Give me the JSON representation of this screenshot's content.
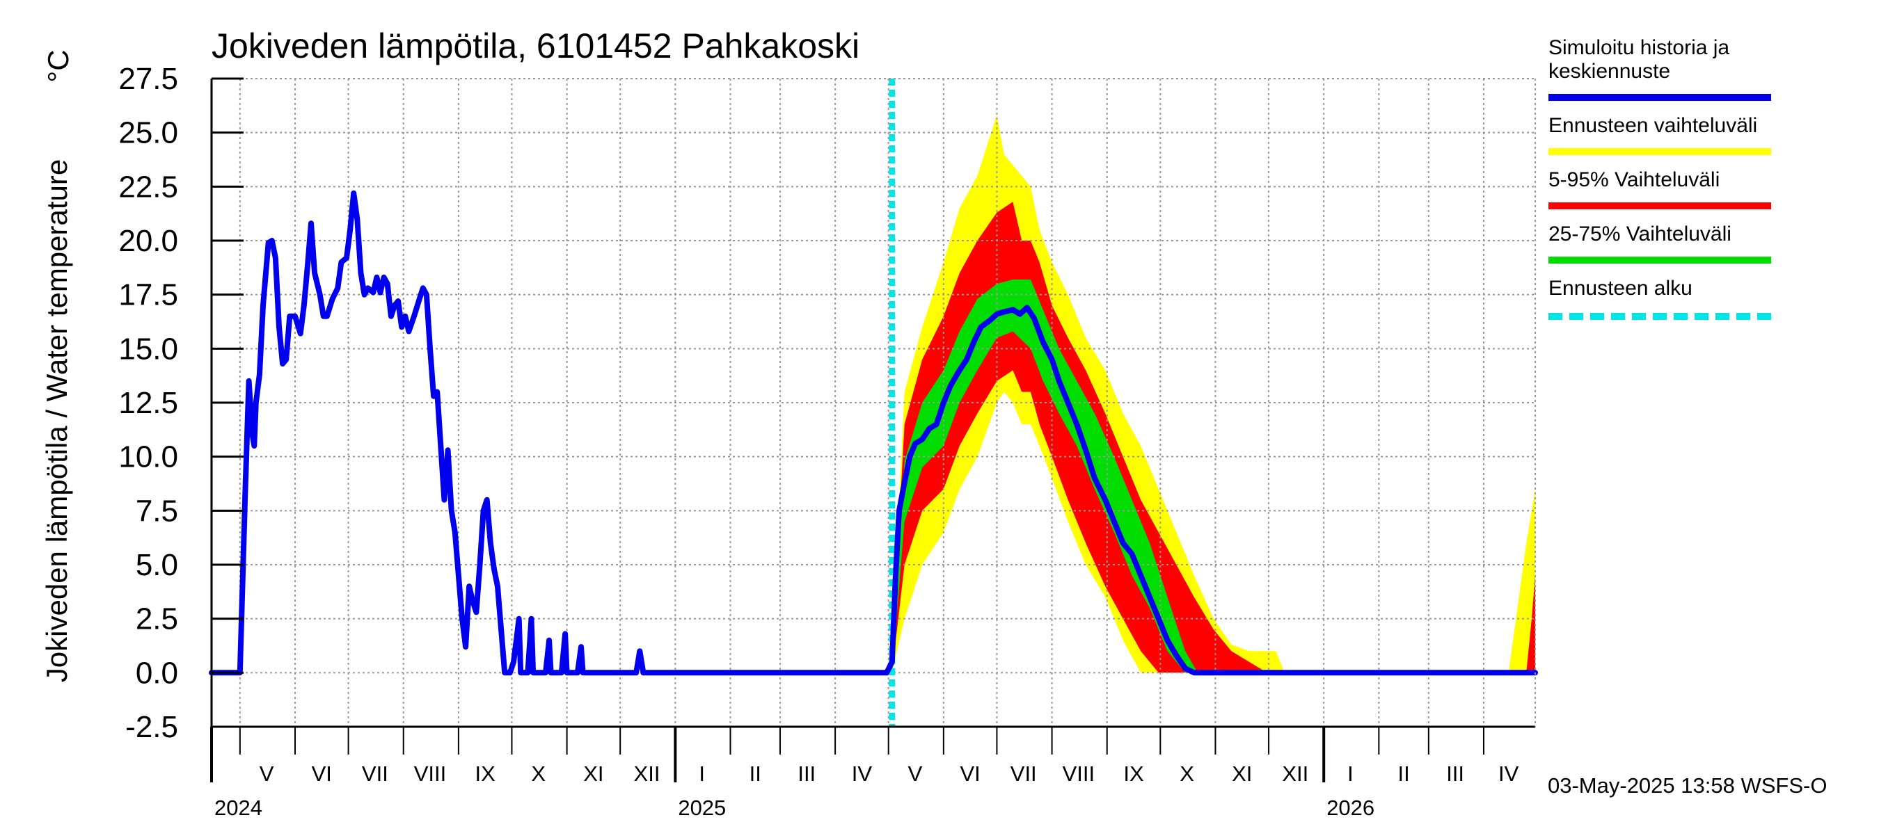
{
  "chart_data": {
    "type": "area",
    "title": "Jokiveden lämpötila, 6101452 Pahkakoski",
    "ylabel": "Jokiveden lämpötila / Water temperature",
    "yunit": "°C",
    "ylim": [
      -2.5,
      27.5
    ],
    "yticks": [
      "27.5",
      "25.0",
      "22.5",
      "20.0",
      "17.5",
      "15.0",
      "12.5",
      "10.0",
      "7.5",
      "5.0",
      "2.5",
      "0.0",
      "-2.5"
    ],
    "xlim": [
      "2024-04-15",
      "2026-04-30"
    ],
    "grid": true,
    "months": [
      {
        "label": "V",
        "start": "2024-05-01"
      },
      {
        "label": "VI",
        "start": "2024-06-01"
      },
      {
        "label": "VII",
        "start": "2024-07-01"
      },
      {
        "label": "VIII",
        "start": "2024-08-01"
      },
      {
        "label": "IX",
        "start": "2024-09-01"
      },
      {
        "label": "X",
        "start": "2024-10-01"
      },
      {
        "label": "XI",
        "start": "2024-11-01"
      },
      {
        "label": "XII",
        "start": "2024-12-01"
      },
      {
        "label": "I",
        "start": "2025-01-01"
      },
      {
        "label": "II",
        "start": "2025-02-01"
      },
      {
        "label": "III",
        "start": "2025-03-01"
      },
      {
        "label": "IV",
        "start": "2025-04-01"
      },
      {
        "label": "V",
        "start": "2025-05-01"
      },
      {
        "label": "VI",
        "start": "2025-06-01"
      },
      {
        "label": "VII",
        "start": "2025-07-01"
      },
      {
        "label": "VIII",
        "start": "2025-08-01"
      },
      {
        "label": "IX",
        "start": "2025-09-01"
      },
      {
        "label": "X",
        "start": "2025-10-01"
      },
      {
        "label": "XI",
        "start": "2025-11-01"
      },
      {
        "label": "XII",
        "start": "2025-12-01"
      },
      {
        "label": "I",
        "start": "2026-01-01"
      },
      {
        "label": "II",
        "start": "2026-02-01"
      },
      {
        "label": "III",
        "start": "2026-03-01"
      },
      {
        "label": "IV",
        "start": "2026-04-01"
      }
    ],
    "years": [
      {
        "label": "2024",
        "start": "2024-04-15"
      },
      {
        "label": "2025",
        "start": "2025-01-01"
      },
      {
        "label": "2026",
        "start": "2026-01-01"
      }
    ],
    "forecast_start": "2025-05-03",
    "history": {
      "name": "Simuloitu historia ja keskiennuste",
      "color": "#0000ee",
      "points": [
        [
          "2024-04-15",
          0
        ],
        [
          "2024-05-01",
          0
        ],
        [
          "2024-05-04",
          8.5
        ],
        [
          "2024-05-06",
          13.5
        ],
        [
          "2024-05-08",
          11.0
        ],
        [
          "2024-05-09",
          10.5
        ],
        [
          "2024-05-10",
          12.5
        ],
        [
          "2024-05-12",
          13.8
        ],
        [
          "2024-05-14",
          17.0
        ],
        [
          "2024-05-17",
          19.9
        ],
        [
          "2024-05-19",
          20.0
        ],
        [
          "2024-05-21",
          19.2
        ],
        [
          "2024-05-23",
          16.0
        ],
        [
          "2024-05-25",
          14.3
        ],
        [
          "2024-05-27",
          14.5
        ],
        [
          "2024-05-29",
          16.5
        ],
        [
          "2024-06-01",
          16.5
        ],
        [
          "2024-06-04",
          15.7
        ],
        [
          "2024-06-06",
          17.0
        ],
        [
          "2024-06-08",
          18.8
        ],
        [
          "2024-06-10",
          20.8
        ],
        [
          "2024-06-12",
          18.5
        ],
        [
          "2024-06-15",
          17.5
        ],
        [
          "2024-06-17",
          16.5
        ],
        [
          "2024-06-19",
          16.5
        ],
        [
          "2024-06-22",
          17.3
        ],
        [
          "2024-06-25",
          17.8
        ],
        [
          "2024-06-27",
          19.0
        ],
        [
          "2024-06-30",
          19.2
        ],
        [
          "2024-07-02",
          20.5
        ],
        [
          "2024-07-04",
          22.2
        ],
        [
          "2024-07-06",
          21.0
        ],
        [
          "2024-07-08",
          18.5
        ],
        [
          "2024-07-10",
          17.5
        ],
        [
          "2024-07-12",
          17.8
        ],
        [
          "2024-07-15",
          17.6
        ],
        [
          "2024-07-17",
          18.3
        ],
        [
          "2024-07-19",
          17.6
        ],
        [
          "2024-07-21",
          18.3
        ],
        [
          "2024-07-23",
          18.0
        ],
        [
          "2024-07-25",
          16.5
        ],
        [
          "2024-07-27",
          17.0
        ],
        [
          "2024-07-29",
          17.2
        ],
        [
          "2024-07-31",
          16.0
        ],
        [
          "2024-08-02",
          16.5
        ],
        [
          "2024-08-04",
          15.8
        ],
        [
          "2024-08-07",
          16.5
        ],
        [
          "2024-08-10",
          17.3
        ],
        [
          "2024-08-12",
          17.8
        ],
        [
          "2024-08-14",
          17.5
        ],
        [
          "2024-08-16",
          15.0
        ],
        [
          "2024-08-18",
          12.8
        ],
        [
          "2024-08-20",
          13.0
        ],
        [
          "2024-08-22",
          10.5
        ],
        [
          "2024-08-24",
          8.0
        ],
        [
          "2024-08-26",
          10.3
        ],
        [
          "2024-08-28",
          7.5
        ],
        [
          "2024-08-30",
          6.5
        ],
        [
          "2024-09-01",
          4.5
        ],
        [
          "2024-09-03",
          2.5
        ],
        [
          "2024-09-05",
          1.2
        ],
        [
          "2024-09-07",
          4.0
        ],
        [
          "2024-09-09",
          3.3
        ],
        [
          "2024-09-11",
          2.8
        ],
        [
          "2024-09-13",
          5.0
        ],
        [
          "2024-09-15",
          7.5
        ],
        [
          "2024-09-17",
          8.0
        ],
        [
          "2024-09-19",
          6.0
        ],
        [
          "2024-09-21",
          4.8
        ],
        [
          "2024-09-23",
          4.0
        ],
        [
          "2024-09-25",
          2.0
        ],
        [
          "2024-09-27",
          0
        ],
        [
          "2024-09-30",
          0
        ],
        [
          "2024-10-02",
          0.5
        ],
        [
          "2024-10-04",
          1.8
        ],
        [
          "2024-10-05",
          2.5
        ],
        [
          "2024-10-06",
          0
        ],
        [
          "2024-10-10",
          0
        ],
        [
          "2024-10-12",
          2.5
        ],
        [
          "2024-10-13",
          0
        ],
        [
          "2024-10-20",
          0
        ],
        [
          "2024-10-22",
          1.5
        ],
        [
          "2024-10-23",
          0
        ],
        [
          "2024-10-29",
          0
        ],
        [
          "2024-10-31",
          1.8
        ],
        [
          "2024-11-01",
          0
        ],
        [
          "2024-11-07",
          0
        ],
        [
          "2024-11-09",
          1.2
        ],
        [
          "2024-11-10",
          0
        ],
        [
          "2024-12-10",
          0
        ],
        [
          "2024-12-12",
          1.0
        ],
        [
          "2024-12-14",
          0
        ],
        [
          "2025-04-30",
          0
        ],
        [
          "2025-05-03",
          0.5
        ],
        [
          "2025-05-05",
          4.5
        ],
        [
          "2025-05-07",
          7.5
        ],
        [
          "2025-05-10",
          8.8
        ],
        [
          "2025-05-13",
          10.0
        ],
        [
          "2025-05-16",
          10.6
        ],
        [
          "2025-05-20",
          10.8
        ],
        [
          "2025-05-24",
          11.3
        ],
        [
          "2025-05-28",
          11.5
        ],
        [
          "2025-06-01",
          12.5
        ],
        [
          "2025-06-05",
          13.3
        ],
        [
          "2025-06-10",
          14.0
        ],
        [
          "2025-06-14",
          14.5
        ],
        [
          "2025-06-18",
          15.3
        ],
        [
          "2025-06-22",
          16.0
        ],
        [
          "2025-06-27",
          16.3
        ],
        [
          "2025-07-01",
          16.6
        ],
        [
          "2025-07-05",
          16.7
        ],
        [
          "2025-07-10",
          16.8
        ],
        [
          "2025-07-14",
          16.6
        ],
        [
          "2025-07-18",
          16.9
        ],
        [
          "2025-07-22",
          16.4
        ],
        [
          "2025-07-27",
          15.3
        ],
        [
          "2025-08-01",
          14.5
        ],
        [
          "2025-08-05",
          13.5
        ],
        [
          "2025-08-10",
          12.5
        ],
        [
          "2025-08-15",
          11.5
        ],
        [
          "2025-08-20",
          10.3
        ],
        [
          "2025-08-25",
          9.0
        ],
        [
          "2025-08-31",
          8.0
        ],
        [
          "2025-09-05",
          7.0
        ],
        [
          "2025-09-10",
          6.0
        ],
        [
          "2025-09-15",
          5.5
        ],
        [
          "2025-09-20",
          4.5
        ],
        [
          "2025-09-25",
          3.5
        ],
        [
          "2025-09-30",
          2.5
        ],
        [
          "2025-10-05",
          1.5
        ],
        [
          "2025-10-10",
          0.8
        ],
        [
          "2025-10-15",
          0.2
        ],
        [
          "2025-10-20",
          0
        ],
        [
          "2026-04-30",
          0
        ]
      ]
    },
    "bands": [
      {
        "name": "Ennusteen vaihteluväli",
        "color": "#ffff00",
        "x": [
          "2025-05-03",
          "2025-05-10",
          "2025-05-20",
          "2025-06-01",
          "2025-06-10",
          "2025-06-20",
          "2025-07-01",
          "2025-07-05",
          "2025-07-10",
          "2025-07-15",
          "2025-07-20",
          "2025-07-25",
          "2025-08-01",
          "2025-08-10",
          "2025-08-20",
          "2025-08-31",
          "2025-09-10",
          "2025-09-20",
          "2025-09-30",
          "2025-10-10",
          "2025-10-20",
          "2025-10-31",
          "2025-11-10",
          "2025-11-20",
          "2025-11-30",
          "2025-12-05",
          "2025-12-10"
        ],
        "lower": [
          0,
          2.5,
          5.0,
          6.5,
          8.5,
          10.0,
          12.5,
          13.0,
          12.5,
          11.5,
          11.5,
          10.5,
          9.0,
          7.0,
          5.0,
          3.5,
          1.5,
          0,
          0,
          0,
          0,
          0,
          0,
          0,
          0,
          0,
          0
        ],
        "upper": [
          1.5,
          13.0,
          16.0,
          19.0,
          21.5,
          23.0,
          25.8,
          24.0,
          23.5,
          23.0,
          22.5,
          20.5,
          19.0,
          17.5,
          15.5,
          14.0,
          12.0,
          10.5,
          8.5,
          6.5,
          4.5,
          2.5,
          1.3,
          1.0,
          1.0,
          1.0,
          0
        ]
      },
      {
        "name": "5-95% Vaihteluväli",
        "color": "#ff0000",
        "x": [
          "2025-05-03",
          "2025-05-10",
          "2025-05-20",
          "2025-06-01",
          "2025-06-10",
          "2025-06-20",
          "2025-07-01",
          "2025-07-10",
          "2025-07-15",
          "2025-07-20",
          "2025-07-25",
          "2025-08-01",
          "2025-08-10",
          "2025-08-20",
          "2025-08-31",
          "2025-09-10",
          "2025-09-20",
          "2025-09-30",
          "2025-10-10",
          "2025-10-20",
          "2025-10-31",
          "2025-11-10",
          "2025-11-20",
          "2025-11-30"
        ],
        "lower": [
          0,
          5.0,
          7.5,
          8.5,
          10.5,
          12.0,
          13.5,
          14.0,
          13.0,
          13.0,
          11.5,
          10.0,
          8.0,
          6.0,
          4.0,
          2.5,
          1.0,
          0,
          0,
          0,
          0,
          0,
          0,
          0
        ],
        "upper": [
          1.0,
          11.5,
          14.5,
          16.5,
          18.5,
          20.0,
          21.3,
          21.8,
          20.0,
          20.0,
          19.0,
          17.0,
          15.5,
          14.0,
          12.0,
          10.0,
          8.0,
          6.5,
          5.0,
          3.5,
          2.0,
          1.0,
          0.5,
          0
        ]
      },
      {
        "name": "25-75% Vaihteluväli",
        "color": "#00dd00",
        "x": [
          "2025-05-03",
          "2025-05-10",
          "2025-05-20",
          "2025-06-01",
          "2025-06-10",
          "2025-06-20",
          "2025-07-01",
          "2025-07-10",
          "2025-07-20",
          "2025-07-27",
          "2025-08-05",
          "2025-08-15",
          "2025-08-25",
          "2025-09-05",
          "2025-09-15",
          "2025-09-25",
          "2025-10-05",
          "2025-10-15",
          "2025-10-22"
        ],
        "lower": [
          0,
          7.0,
          9.5,
          10.5,
          12.5,
          14.0,
          15.5,
          15.8,
          15.0,
          13.5,
          12.0,
          10.5,
          8.5,
          6.5,
          4.5,
          3.0,
          1.0,
          0,
          0
        ],
        "upper": [
          0.5,
          9.8,
          12.5,
          14.0,
          15.8,
          17.3,
          18.0,
          18.2,
          18.2,
          16.8,
          15.0,
          13.5,
          12.0,
          10.0,
          8.0,
          6.0,
          3.5,
          1.0,
          0
        ]
      }
    ],
    "late_bands": [
      {
        "color": "#ffff00",
        "x": [
          "2026-04-15",
          "2026-04-20",
          "2026-04-25",
          "2026-04-30"
        ],
        "lower": [
          0,
          0,
          0,
          0
        ],
        "upper": [
          0,
          3.0,
          6.0,
          8.5
        ]
      },
      {
        "color": "#ff0000",
        "x": [
          "2026-04-25",
          "2026-04-28",
          "2026-04-30"
        ],
        "lower": [
          0,
          0,
          0
        ],
        "upper": [
          0,
          2.5,
          4.5
        ]
      }
    ],
    "legend": [
      {
        "label": "Simuloitu historia ja keskiennuste",
        "color": "#0000ee",
        "style": "solid"
      },
      {
        "label": "Ennusteen vaihteluväli",
        "color": "#ffff00",
        "style": "solid"
      },
      {
        "label": "5-95% Vaihteluväli",
        "color": "#ff0000",
        "style": "solid"
      },
      {
        "label": "25-75% Vaihteluväli",
        "color": "#00dd00",
        "style": "solid"
      },
      {
        "label": "Ennusteen alku",
        "color": "#00e5e5",
        "style": "dashed"
      }
    ],
    "footer": "03-May-2025 13:58 WSFS-O"
  }
}
